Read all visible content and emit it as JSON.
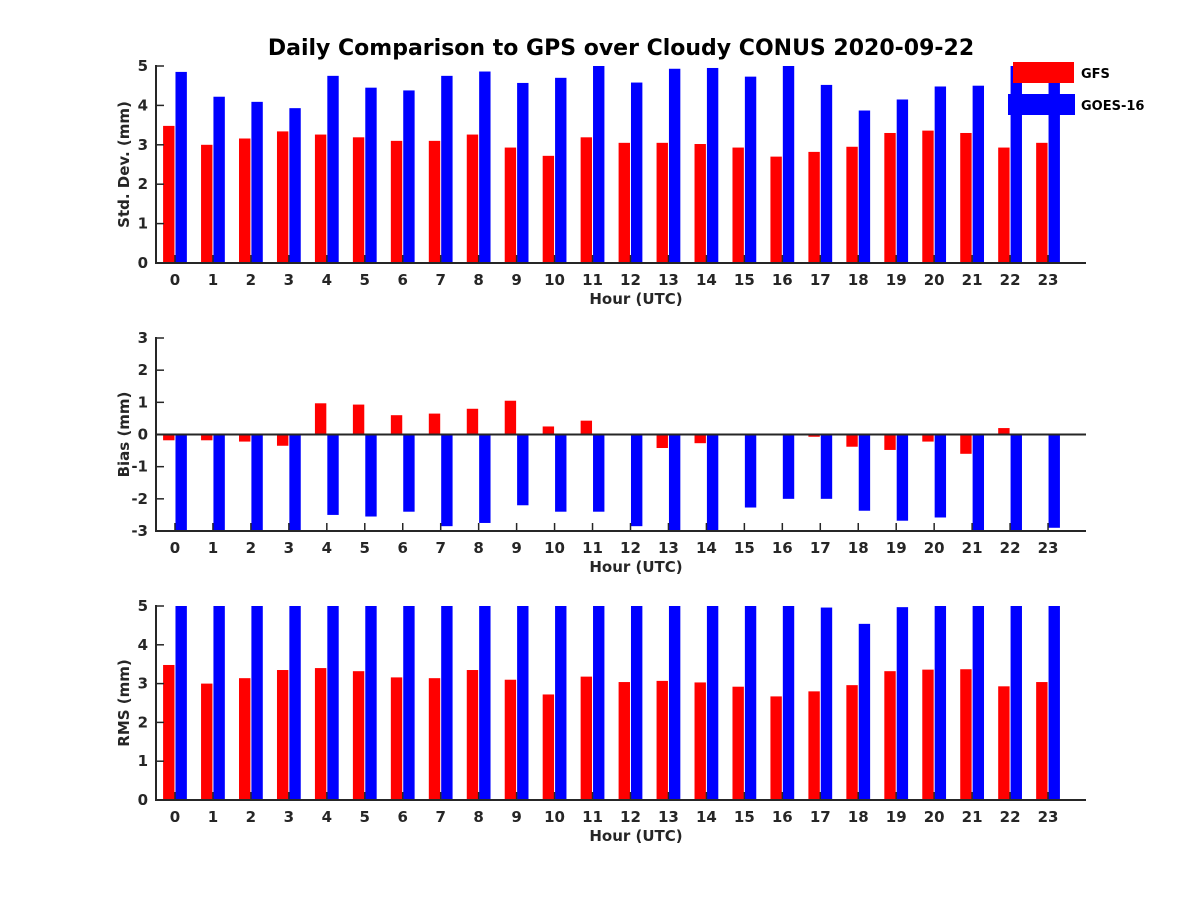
{
  "chart_data": {
    "title": "Daily Comparison to GPS over Cloudy CONUS 2020-09-22",
    "legend": {
      "placement": "top-right",
      "entries": [
        {
          "name": "GFS",
          "color": "#ff0000"
        },
        {
          "name": "GOES-16",
          "color": "#0000ff"
        }
      ]
    },
    "panels": [
      {
        "type": "bar",
        "xlabel": "Hour (UTC)",
        "ylabel": "Std. Dev. (mm)",
        "ylim": [
          0,
          5
        ],
        "yticks": [
          "0",
          "1",
          "2",
          "3",
          "4",
          "5"
        ],
        "categories": [
          "0",
          "1",
          "2",
          "3",
          "4",
          "5",
          "6",
          "7",
          "8",
          "9",
          "10",
          "11",
          "12",
          "13",
          "14",
          "15",
          "16",
          "17",
          "18",
          "19",
          "20",
          "21",
          "22",
          "23"
        ],
        "series": [
          {
            "name": "GFS",
            "color": "#ff0000",
            "values": [
              3.48,
              3.0,
              3.16,
              3.34,
              3.26,
              3.19,
              3.1,
              3.1,
              3.26,
              2.93,
              2.72,
              3.19,
              3.05,
              3.05,
              3.02,
              2.93,
              2.7,
              2.82,
              2.95,
              3.3,
              3.36,
              3.3,
              2.93,
              3.05
            ]
          },
          {
            "name": "GOES-16",
            "color": "#0000ff",
            "values": [
              4.85,
              4.22,
              4.09,
              3.93,
              4.75,
              4.45,
              4.38,
              4.75,
              4.86,
              4.57,
              4.7,
              5.0,
              4.58,
              4.93,
              4.95,
              4.73,
              5.0,
              4.52,
              3.87,
              4.15,
              4.48,
              4.5,
              5.0,
              5.0
            ]
          }
        ]
      },
      {
        "type": "bar",
        "xlabel": "Hour (UTC)",
        "ylabel": "Bias (mm)",
        "ylim": [
          -3,
          3
        ],
        "yticks": [
          "-3",
          "-2",
          "-1",
          "0",
          "1",
          "2",
          "3"
        ],
        "categories": [
          "0",
          "1",
          "2",
          "3",
          "4",
          "5",
          "6",
          "7",
          "8",
          "9",
          "10",
          "11",
          "12",
          "13",
          "14",
          "15",
          "16",
          "17",
          "18",
          "19",
          "20",
          "21",
          "22",
          "23"
        ],
        "series": [
          {
            "name": "GFS",
            "color": "#ff0000",
            "values": [
              -0.18,
              -0.18,
              -0.22,
              -0.35,
              0.97,
              0.93,
              0.6,
              0.65,
              0.8,
              1.05,
              0.25,
              0.43,
              0.03,
              -0.42,
              -0.27,
              0.0,
              0.03,
              -0.07,
              -0.38,
              -0.48,
              -0.22,
              -0.6,
              0.2,
              0.03
            ]
          },
          {
            "name": "GOES-16",
            "color": "#0000ff",
            "values": [
              -3.0,
              -3.0,
              -3.0,
              -3.0,
              -2.5,
              -2.55,
              -2.4,
              -2.85,
              -2.75,
              -2.2,
              -2.4,
              -2.4,
              -2.85,
              -3.0,
              -3.0,
              -2.27,
              -2.0,
              -2.0,
              -2.37,
              -2.68,
              -2.58,
              -3.0,
              -3.0,
              -2.9
            ]
          }
        ]
      },
      {
        "type": "bar",
        "xlabel": "Hour (UTC)",
        "ylabel": "RMS (mm)",
        "ylim": [
          0,
          5
        ],
        "yticks": [
          "0",
          "1",
          "2",
          "3",
          "4",
          "5"
        ],
        "categories": [
          "0",
          "1",
          "2",
          "3",
          "4",
          "5",
          "6",
          "7",
          "8",
          "9",
          "10",
          "11",
          "12",
          "13",
          "14",
          "15",
          "16",
          "17",
          "18",
          "19",
          "20",
          "21",
          "22",
          "23"
        ],
        "series": [
          {
            "name": "GFS",
            "color": "#ff0000",
            "values": [
              3.48,
              3.0,
              3.14,
              3.35,
              3.4,
              3.32,
              3.16,
              3.14,
              3.35,
              3.1,
              2.72,
              3.18,
              3.04,
              3.07,
              3.03,
              2.92,
              2.67,
              2.8,
              2.96,
              3.32,
              3.36,
              3.37,
              2.93,
              3.04
            ]
          },
          {
            "name": "GOES-16",
            "color": "#0000ff",
            "values": [
              5.0,
              5.0,
              5.0,
              5.0,
              5.0,
              5.0,
              5.0,
              5.0,
              5.0,
              5.0,
              5.0,
              5.0,
              5.0,
              5.0,
              5.0,
              5.0,
              5.0,
              4.96,
              4.54,
              4.97,
              5.0,
              5.0,
              5.0,
              5.0
            ]
          }
        ]
      }
    ]
  }
}
